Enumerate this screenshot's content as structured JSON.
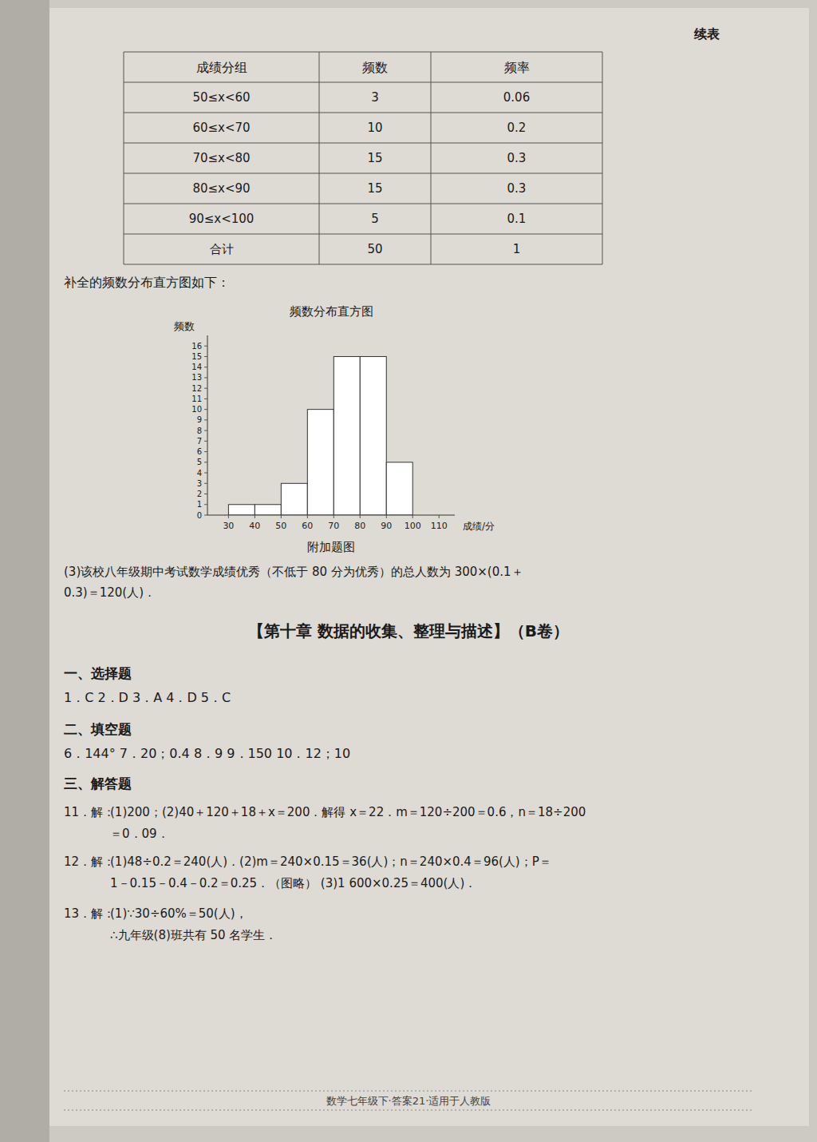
{
  "page_bg": "#cdc9c3",
  "content_bg": "#dedad4",
  "left_band_color": "#b0aca6",
  "title_suffix": "续表",
  "table": {
    "headers": [
      "成绩分组",
      "频数",
      "频率"
    ],
    "rows": [
      [
        "50≤x<60",
        "3",
        "0.06"
      ],
      [
        "60≤x<70",
        "10",
        "0.2"
      ],
      [
        "70≤x<80",
        "15",
        "0.3"
      ],
      [
        "80≤x<90",
        "15",
        "0.3"
      ],
      [
        "90≤x<100",
        "5",
        "0.1"
      ],
      [
        "合计",
        "50",
        "1"
      ]
    ]
  },
  "text_below_table": "补全的频数分布直方图如下：",
  "chart_data": {
    "type": "histogram",
    "title": "频数分布直方图",
    "x_label": "成绩/分",
    "y_label": "频数",
    "bins": [
      30,
      40,
      50,
      60,
      70,
      80,
      90,
      100
    ],
    "values": [
      1,
      1,
      3,
      10,
      15,
      15,
      5
    ],
    "color": "#ffffff",
    "xlim": [
      22,
      116
    ],
    "ylim": [
      0,
      17
    ],
    "xticks": [
      30,
      40,
      50,
      60,
      70,
      80,
      90,
      100,
      110
    ],
    "yticks": [
      0,
      1,
      2,
      3,
      4,
      5,
      6,
      7,
      8,
      9,
      10,
      11,
      12,
      13,
      14,
      15,
      16
    ]
  },
  "figure_caption": "附加题图",
  "para3": [
    "(3)该校八年级期中考试数学成绩优秀（不低于 80 分为优秀）的总人数为 300×(0.1＋",
    "0.3)＝120(人)．"
  ],
  "section_title": "【第十章  数据的收集、整理与描述】（B卷）",
  "sections": [
    {
      "label": "一、选择题",
      "lines": [
        "1．C  2．D  3．A  4．D  5．C"
      ]
    },
    {
      "label": "二、填空题",
      "lines": [
        "6．144°  7．20；0.4  8．9  9．150  10．12；10"
      ]
    },
    {
      "label": "三、解答题",
      "lines": []
    }
  ],
  "questions": [
    {
      "label": "11．解：",
      "lines": [
        "(1)200；(2)40＋120＋18＋x＝200．解得 x＝22．m＝120÷200＝0.6，n＝18÷200",
        "＝0．09．"
      ]
    },
    {
      "label": "12．解：",
      "lines": [
        "(1)48÷0.2＝240(人)．(2)m＝240×0.15＝36(人)；n＝240×0.4＝96(人)；P＝",
        "1－0.15－0.4－0.2＝0.25．（图略）  (3)1 600×0.25＝400(人)．"
      ]
    },
    {
      "label": "13．解：",
      "lines": [
        "(1)∵30÷60%＝50(人)，",
        "∴九年级(8)班共有 50 名学生．"
      ]
    }
  ],
  "footer": "数学七年级下·答案21·适用于人教版"
}
